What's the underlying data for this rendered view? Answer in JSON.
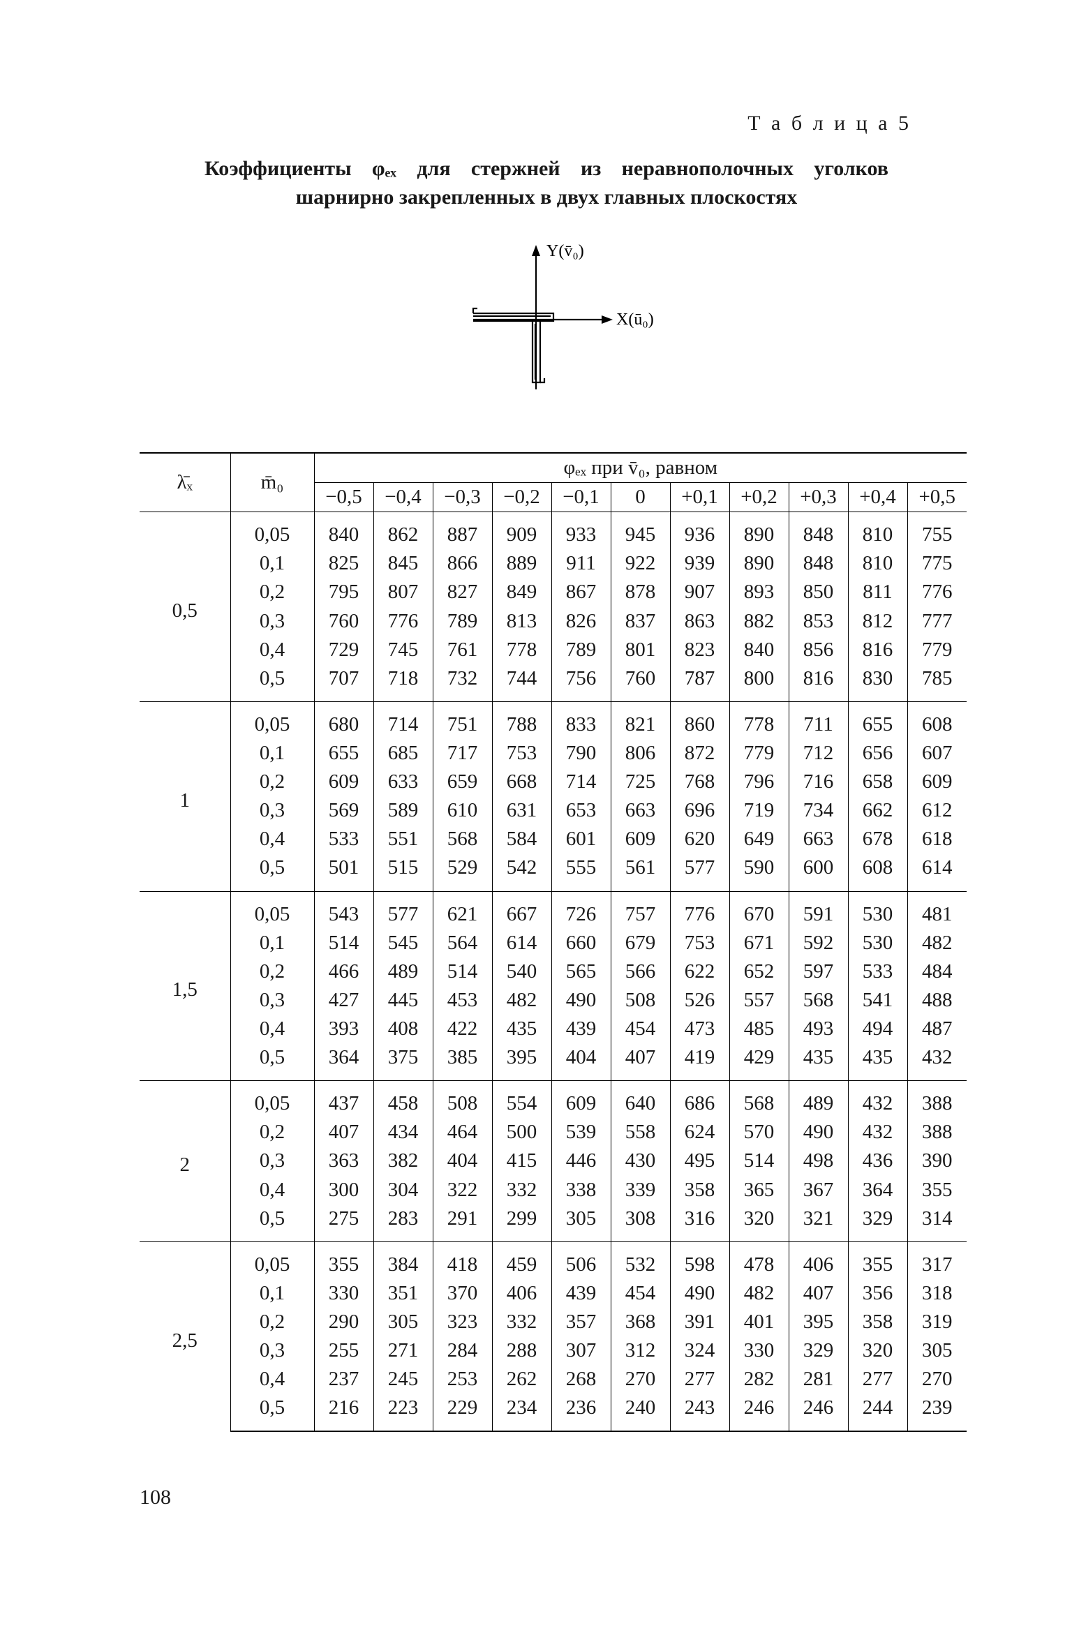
{
  "table_label": "Т а б л и ц а  5",
  "caption_lead": "Коэффициенты φₑₓ",
  "caption_tail_line1": " для стержней из неравнополочных",
  "caption_line2": "уголков шарнирно закрепленных в двух главных плоскостях",
  "diagram": {
    "y_label": "Y(v̄₀)",
    "x_label": "X(ū₀)"
  },
  "columns": {
    "lambda": "λ̄ₓ",
    "mo": "m̄₀",
    "span_title": "φₑₓ при v̄₀, равном",
    "values": [
      "−0,5",
      "−0,4",
      "−0,3",
      "−0,2",
      "−0,1",
      "0",
      "+0,1",
      "+0,2",
      "+0,3",
      "+0,4",
      "+0,5"
    ]
  },
  "groups": [
    {
      "lambda": "0,5",
      "rows": [
        {
          "mo": "0,05",
          "v": [
            "840",
            "862",
            "887",
            "909",
            "933",
            "945",
            "936",
            "890",
            "848",
            "810",
            "755"
          ]
        },
        {
          "mo": "0,1",
          "v": [
            "825",
            "845",
            "866",
            "889",
            "911",
            "922",
            "939",
            "890",
            "848",
            "810",
            "775"
          ]
        },
        {
          "mo": "0,2",
          "v": [
            "795",
            "807",
            "827",
            "849",
            "867",
            "878",
            "907",
            "893",
            "850",
            "811",
            "776"
          ]
        },
        {
          "mo": "0,3",
          "v": [
            "760",
            "776",
            "789",
            "813",
            "826",
            "837",
            "863",
            "882",
            "853",
            "812",
            "777"
          ]
        },
        {
          "mo": "0,4",
          "v": [
            "729",
            "745",
            "761",
            "778",
            "789",
            "801",
            "823",
            "840",
            "856",
            "816",
            "779"
          ]
        },
        {
          "mo": "0,5",
          "v": [
            "707",
            "718",
            "732",
            "744",
            "756",
            "760",
            "787",
            "800",
            "816",
            "830",
            "785"
          ]
        }
      ]
    },
    {
      "lambda": "1",
      "rows": [
        {
          "mo": "0,05",
          "v": [
            "680",
            "714",
            "751",
            "788",
            "833",
            "821",
            "860",
            "778",
            "711",
            "655",
            "608"
          ]
        },
        {
          "mo": "0,1",
          "v": [
            "655",
            "685",
            "717",
            "753",
            "790",
            "806",
            "872",
            "779",
            "712",
            "656",
            "607"
          ]
        },
        {
          "mo": "0,2",
          "v": [
            "609",
            "633",
            "659",
            "668",
            "714",
            "725",
            "768",
            "796",
            "716",
            "658",
            "609"
          ]
        },
        {
          "mo": "0,3",
          "v": [
            "569",
            "589",
            "610",
            "631",
            "653",
            "663",
            "696",
            "719",
            "734",
            "662",
            "612"
          ]
        },
        {
          "mo": "0,4",
          "v": [
            "533",
            "551",
            "568",
            "584",
            "601",
            "609",
            "620",
            "649",
            "663",
            "678",
            "618"
          ]
        },
        {
          "mo": "0,5",
          "v": [
            "501",
            "515",
            "529",
            "542",
            "555",
            "561",
            "577",
            "590",
            "600",
            "608",
            "614"
          ]
        }
      ]
    },
    {
      "lambda": "1,5",
      "rows": [
        {
          "mo": "0,05",
          "v": [
            "543",
            "577",
            "621",
            "667",
            "726",
            "757",
            "776",
            "670",
            "591",
            "530",
            "481"
          ]
        },
        {
          "mo": "0,1",
          "v": [
            "514",
            "545",
            "564",
            "614",
            "660",
            "679",
            "753",
            "671",
            "592",
            "530",
            "482"
          ]
        },
        {
          "mo": "0,2",
          "v": [
            "466",
            "489",
            "514",
            "540",
            "565",
            "566",
            "622",
            "652",
            "597",
            "533",
            "484"
          ]
        },
        {
          "mo": "0,3",
          "v": [
            "427",
            "445",
            "453",
            "482",
            "490",
            "508",
            "526",
            "557",
            "568",
            "541",
            "488"
          ]
        },
        {
          "mo": "0,4",
          "v": [
            "393",
            "408",
            "422",
            "435",
            "439",
            "454",
            "473",
            "485",
            "493",
            "494",
            "487"
          ]
        },
        {
          "mo": "0,5",
          "v": [
            "364",
            "375",
            "385",
            "395",
            "404",
            "407",
            "419",
            "429",
            "435",
            "435",
            "432"
          ]
        }
      ]
    },
    {
      "lambda": "2",
      "rows": [
        {
          "mo": "0,05",
          "v": [
            "437",
            "458",
            "508",
            "554",
            "609",
            "640",
            "686",
            "568",
            "489",
            "432",
            "388"
          ]
        },
        {
          "mo": "0,2",
          "v": [
            "407",
            "434",
            "464",
            "500",
            "539",
            "558",
            "624",
            "570",
            "490",
            "432",
            "388"
          ]
        },
        {
          "mo": "0,3",
          "v": [
            "363",
            "382",
            "404",
            "415",
            "446",
            "430",
            "495",
            "514",
            "498",
            "436",
            "390"
          ]
        },
        {
          "mo": "0,4",
          "v": [
            "300",
            "304",
            "322",
            "332",
            "338",
            "339",
            "358",
            "365",
            "367",
            "364",
            "355"
          ]
        },
        {
          "mo": "0,5",
          "v": [
            "275",
            "283",
            "291",
            "299",
            "305",
            "308",
            "316",
            "320",
            "321",
            "329",
            "314"
          ]
        }
      ]
    },
    {
      "lambda": "2,5",
      "rows": [
        {
          "mo": "0,05",
          "v": [
            "355",
            "384",
            "418",
            "459",
            "506",
            "532",
            "598",
            "478",
            "406",
            "355",
            "317"
          ]
        },
        {
          "mo": "0,1",
          "v": [
            "330",
            "351",
            "370",
            "406",
            "439",
            "454",
            "490",
            "482",
            "407",
            "356",
            "318"
          ]
        },
        {
          "mo": "0,2",
          "v": [
            "290",
            "305",
            "323",
            "332",
            "357",
            "368",
            "391",
            "401",
            "395",
            "358",
            "319"
          ]
        },
        {
          "mo": "0,3",
          "v": [
            "255",
            "271",
            "284",
            "288",
            "307",
            "312",
            "324",
            "330",
            "329",
            "320",
            "305"
          ]
        },
        {
          "mo": "0,4",
          "v": [
            "237",
            "245",
            "253",
            "262",
            "268",
            "270",
            "277",
            "282",
            "281",
            "277",
            "270"
          ]
        },
        {
          "mo": "0,5",
          "v": [
            "216",
            "223",
            "229",
            "234",
            "236",
            "240",
            "243",
            "246",
            "246",
            "244",
            "239"
          ]
        }
      ]
    }
  ],
  "page_number": "108"
}
